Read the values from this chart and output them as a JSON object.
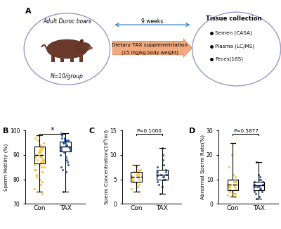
{
  "panel_A": {
    "left_circle_text1": "Adult Duroc boars",
    "left_circle_text2": "N=10/group",
    "arrow_top_label": "9 weeks",
    "arrow_main_line1": "Dietary TAX supplementation",
    "arrow_main_line2": "(15 mg/kg body weight)",
    "right_circle_title": "Tissue collection",
    "right_circle_items": [
      "Semen (CASA)",
      "Plasma (LC/MS)",
      "Feces(16S)"
    ]
  },
  "panel_B": {
    "label": "B",
    "ylabel": "Sperm Motility (%)",
    "ylim": [
      70,
      100
    ],
    "yticks": [
      70,
      80,
      90,
      100
    ],
    "sig_text": "*",
    "con_q1": 86.5,
    "con_med": 90.0,
    "con_q3": 93.5,
    "con_lo": 75.0,
    "con_hi": 98.0,
    "tax_q1": 91.5,
    "tax_med": 93.5,
    "tax_q3": 95.5,
    "tax_lo": 75.0,
    "tax_hi": 99.0,
    "con_scatter": [
      74,
      76,
      78,
      79,
      80,
      81,
      82,
      83,
      84,
      84,
      85,
      85,
      86,
      86,
      87,
      87,
      88,
      88,
      88,
      89,
      89,
      89,
      90,
      90,
      90,
      91,
      91,
      92,
      92,
      93,
      93,
      94,
      95,
      96,
      97,
      98
    ],
    "tax_scatter": [
      75,
      83,
      84,
      85,
      86,
      87,
      88,
      89,
      90,
      91,
      92,
      92,
      93,
      93,
      93,
      94,
      94,
      94,
      95,
      95,
      95,
      96,
      96,
      96,
      97,
      97,
      98,
      99
    ]
  },
  "panel_C": {
    "label": "C",
    "ylabel": "Sperm Concentration(10⁶/ml)",
    "ylim": [
      0,
      15
    ],
    "yticks": [
      0,
      5,
      10,
      15
    ],
    "pvalue": "P=0.1060",
    "con_q1": 4.5,
    "con_med": 5.5,
    "con_q3": 6.5,
    "con_lo": 2.5,
    "con_hi": 8.0,
    "tax_q1": 5.0,
    "tax_med": 6.0,
    "tax_q3": 7.0,
    "tax_lo": 2.0,
    "tax_hi": 11.5,
    "con_scatter": [
      2.5,
      3.0,
      3.5,
      4.0,
      4.2,
      4.5,
      4.7,
      5.0,
      5.0,
      5.2,
      5.5,
      5.5,
      5.8,
      6.0,
      6.0,
      6.2,
      6.5,
      6.5,
      7.0,
      7.0,
      7.5,
      8.0
    ],
    "tax_scatter": [
      2.0,
      3.5,
      4.0,
      4.5,
      5.0,
      5.0,
      5.5,
      5.5,
      5.8,
      6.0,
      6.0,
      6.5,
      6.5,
      7.0,
      7.5,
      8.0,
      9.0,
      10.0,
      11.5
    ]
  },
  "panel_D": {
    "label": "D",
    "ylabel": "Abnormal Sperm Rate(%)",
    "ylim": [
      0,
      30
    ],
    "yticks": [
      0,
      10,
      20,
      30
    ],
    "pvalue": "P=0.5877",
    "con_q1": 5.5,
    "con_med": 8.0,
    "con_q3": 10.0,
    "con_lo": 3.0,
    "con_hi": 25.0,
    "tax_q1": 5.5,
    "tax_med": 7.5,
    "tax_q3": 9.0,
    "tax_lo": 2.0,
    "tax_hi": 17.0,
    "con_scatter": [
      3,
      3.5,
      4,
      4,
      5,
      5,
      6,
      6,
      7,
      7,
      7,
      8,
      8,
      8,
      9,
      9,
      9,
      10,
      10,
      11,
      12,
      15,
      20,
      25
    ],
    "tax_scatter": [
      2,
      3,
      4,
      5,
      5,
      6,
      6,
      7,
      7,
      7,
      8,
      8,
      8,
      9,
      9,
      10,
      10,
      11,
      12,
      17
    ]
  },
  "color_con": "#f2c12e",
  "color_tax": "#2255a4",
  "bg_color": "#ffffff",
  "circle_color": "#9999cc",
  "arrow_fill": "#f0a070",
  "arrow_edge": "#e07040",
  "blue_arrow_color": "#4488cc"
}
